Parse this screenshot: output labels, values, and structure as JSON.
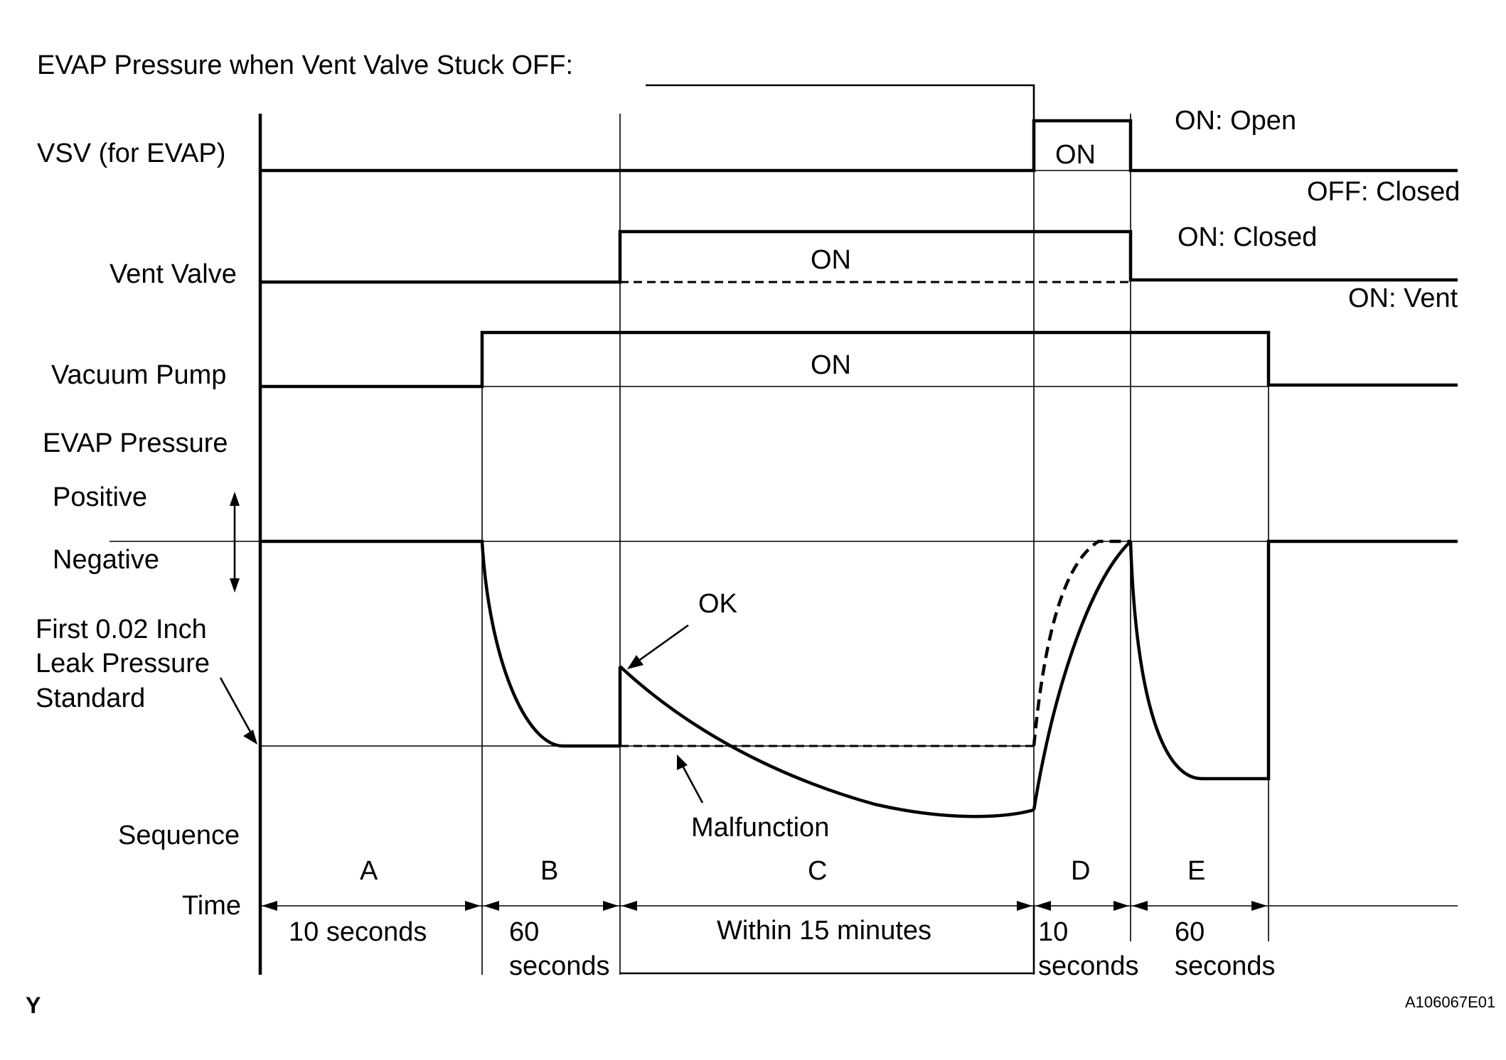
{
  "title": "EVAP Pressure when Vent Valve Stuck OFF:",
  "rows": {
    "vsv": "VSV (for EVAP)",
    "vent_valve": "Vent Valve",
    "vacuum_pump": "Vacuum Pump",
    "evap_pressure": "EVAP Pressure",
    "positive": "Positive",
    "negative": "Negative",
    "leak_standard": [
      "First 0.02 Inch",
      "Leak Pressure",
      "Standard"
    ],
    "sequence": "Sequence",
    "time": "Time"
  },
  "states": {
    "vsv_on": "ON",
    "vent_on": "ON",
    "pump_on": "ON",
    "vsv_on_meaning": "ON: Open",
    "vsv_off_meaning": "OFF: Closed",
    "vent_on_meaning": "ON: Closed",
    "vent_off_meaning": "ON: Vent"
  },
  "annotations": {
    "ok": "OK",
    "malfunction": "Malfunction"
  },
  "sequence": [
    {
      "label": "A",
      "time": [
        "10 seconds"
      ]
    },
    {
      "label": "B",
      "time": [
        "60",
        "seconds"
      ]
    },
    {
      "label": "C",
      "time": [
        "Within 15 minutes"
      ]
    },
    {
      "label": "D",
      "time": [
        "10",
        "seconds"
      ]
    },
    {
      "label": "E",
      "time": [
        "60",
        "seconds"
      ]
    }
  ],
  "footer": {
    "left_mark": "Y",
    "figure_id": "A106067E01"
  }
}
